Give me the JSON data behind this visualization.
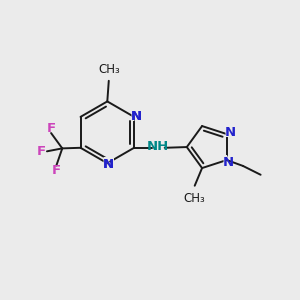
{
  "background_color": "#ebebeb",
  "bond_color": "#1a1a1a",
  "nitrogen_color": "#2222cc",
  "fluorine_color": "#cc44bb",
  "nh_color": "#008888",
  "figsize": [
    3.0,
    3.0
  ],
  "dpi": 100,
  "xlim": [
    0,
    10
  ],
  "ylim": [
    0,
    10
  ]
}
